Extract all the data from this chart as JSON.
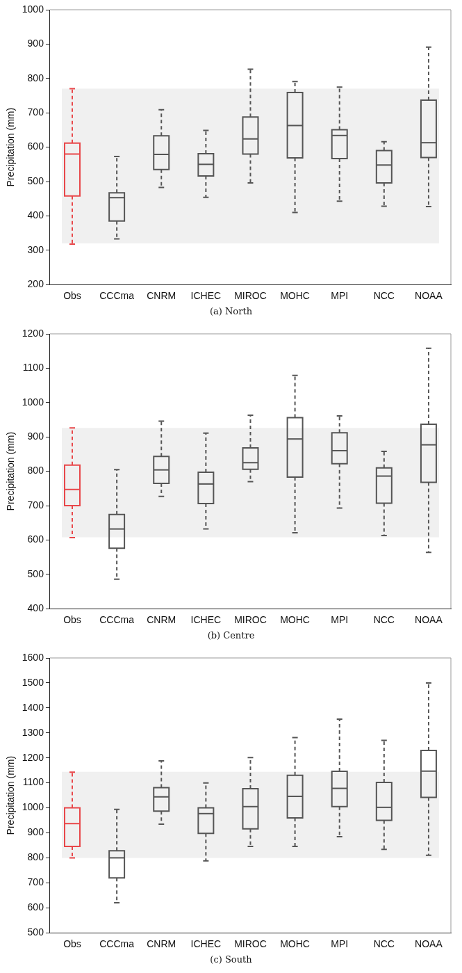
{
  "chart_data": [
    {
      "type": "box",
      "title": "(a) North",
      "ylabel": "Precipitation (mm)",
      "categories": [
        "Obs",
        "CCCma",
        "CNRM",
        "ICHEC",
        "MIROC",
        "MOHC",
        "MPI",
        "NCC",
        "NOAA"
      ],
      "colors": [
        "#e8474a",
        "#555555",
        "#555555",
        "#555555",
        "#555555",
        "#555555",
        "#555555",
        "#555555",
        "#555555"
      ],
      "boxes": [
        {
          "low": 318,
          "q1": 458,
          "median": 580,
          "q3": 612,
          "high": 770
        },
        {
          "low": 333,
          "q1": 385,
          "median": 453,
          "q3": 467,
          "high": 573
        },
        {
          "low": 483,
          "q1": 535,
          "median": 579,
          "q3": 633,
          "high": 709
        },
        {
          "low": 454,
          "q1": 516,
          "median": 550,
          "q3": 581,
          "high": 649
        },
        {
          "low": 496,
          "q1": 580,
          "median": 624,
          "q3": 688,
          "high": 827
        },
        {
          "low": 410,
          "q1": 569,
          "median": 663,
          "q3": 759,
          "high": 791
        },
        {
          "low": 443,
          "q1": 567,
          "median": 634,
          "q3": 651,
          "high": 775
        },
        {
          "low": 428,
          "q1": 496,
          "median": 548,
          "q3": 590,
          "high": 616
        },
        {
          "low": 427,
          "q1": 570,
          "median": 613,
          "q3": 737,
          "high": 891
        }
      ],
      "ylim": [
        200,
        1000
      ],
      "yticks": [
        200,
        300,
        400,
        500,
        600,
        700,
        800,
        900,
        1000
      ],
      "bands": [
        {
          "axis": "y",
          "from": 320,
          "to": 770,
          "color": "#f0f0f0"
        }
      ],
      "line_style": "dashed",
      "grid": false,
      "legend": false
    },
    {
      "type": "box",
      "title": "(b) Centre",
      "ylabel": "Precipitation (mm)",
      "categories": [
        "Obs",
        "CCCma",
        "CNRM",
        "ICHEC",
        "MIROC",
        "MOHC",
        "MPI",
        "NCC",
        "NOAA"
      ],
      "colors": [
        "#e8474a",
        "#555555",
        "#555555",
        "#555555",
        "#555555",
        "#555555",
        "#555555",
        "#555555",
        "#555555"
      ],
      "boxes": [
        {
          "low": 607,
          "q1": 700,
          "median": 747,
          "q3": 818,
          "high": 926
        },
        {
          "low": 486,
          "q1": 576,
          "median": 632,
          "q3": 674,
          "high": 805
        },
        {
          "low": 727,
          "q1": 765,
          "median": 804,
          "q3": 843,
          "high": 946
        },
        {
          "low": 632,
          "q1": 706,
          "median": 763,
          "q3": 797,
          "high": 911
        },
        {
          "low": 770,
          "q1": 806,
          "median": 825,
          "q3": 868,
          "high": 963
        },
        {
          "low": 621,
          "q1": 783,
          "median": 894,
          "q3": 956,
          "high": 1079
        },
        {
          "low": 693,
          "q1": 822,
          "median": 860,
          "q3": 912,
          "high": 961
        },
        {
          "low": 613,
          "q1": 707,
          "median": 786,
          "q3": 810,
          "high": 858
        },
        {
          "low": 564,
          "q1": 768,
          "median": 877,
          "q3": 937,
          "high": 1158
        }
      ],
      "ylim": [
        400,
        1200
      ],
      "yticks": [
        400,
        500,
        600,
        700,
        800,
        900,
        1000,
        1100,
        1200
      ],
      "bands": [
        {
          "axis": "y",
          "from": 608,
          "to": 926,
          "color": "#f0f0f0"
        }
      ],
      "line_style": "dashed",
      "grid": false,
      "legend": false
    },
    {
      "type": "box",
      "title": "(c) South",
      "ylabel": "Precipitation (mm)",
      "categories": [
        "Obs",
        "CCCma",
        "CNRM",
        "ICHEC",
        "MIROC",
        "MOHC",
        "MPI",
        "NCC",
        "NOAA"
      ],
      "colors": [
        "#e8474a",
        "#555555",
        "#555555",
        "#555555",
        "#555555",
        "#555555",
        "#555555",
        "#555555",
        "#555555"
      ],
      "boxes": [
        {
          "low": 800,
          "q1": 846,
          "median": 937,
          "q3": 1000,
          "high": 1143
        },
        {
          "low": 620,
          "q1": 720,
          "median": 800,
          "q3": 828,
          "high": 994
        },
        {
          "low": 935,
          "q1": 987,
          "median": 1044,
          "q3": 1081,
          "high": 1188
        },
        {
          "low": 788,
          "q1": 898,
          "median": 977,
          "q3": 1000,
          "high": 1100
        },
        {
          "low": 846,
          "q1": 916,
          "median": 1005,
          "q3": 1077,
          "high": 1201
        },
        {
          "low": 846,
          "q1": 960,
          "median": 1046,
          "q3": 1130,
          "high": 1281
        },
        {
          "low": 885,
          "q1": 1005,
          "median": 1078,
          "q3": 1146,
          "high": 1355
        },
        {
          "low": 834,
          "q1": 950,
          "median": 1002,
          "q3": 1102,
          "high": 1270
        },
        {
          "low": 810,
          "q1": 1042,
          "median": 1147,
          "q3": 1230,
          "high": 1500
        }
      ],
      "ylim": [
        500,
        1600
      ],
      "yticks": [
        500,
        600,
        700,
        800,
        900,
        1000,
        1100,
        1200,
        1300,
        1400,
        1500,
        1600
      ],
      "bands": [
        {
          "axis": "y",
          "from": 800,
          "to": 1144,
          "color": "#f0f0f0"
        }
      ],
      "line_style": "dashed",
      "grid": false,
      "legend": false
    }
  ]
}
